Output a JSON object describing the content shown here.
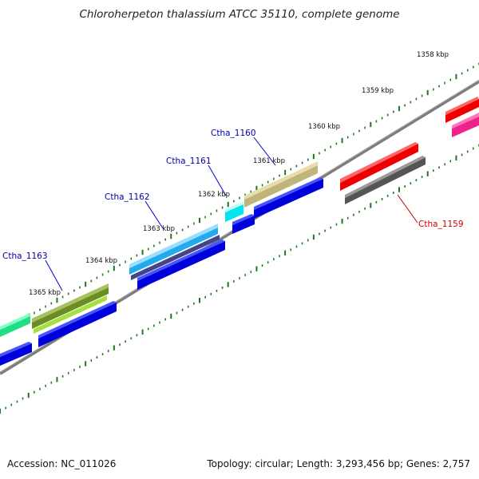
{
  "title": "Chloroherpeton thalassium ATCC 35110, complete genome",
  "footer": {
    "accession": "Accession: NC_011026",
    "summary": "Topology: circular; Length: 3,293,456 bp; Genes: 2,757"
  },
  "ruler": [
    "1358 kbp",
    "1359 kbp",
    "1360 kbp",
    "1361 kbp",
    "1362 kbp",
    "1363 kbp",
    "1364 kbp",
    "1365 kbp"
  ],
  "gene_labels": [
    {
      "name": "Ctha_1159",
      "color": "#cc0000"
    },
    {
      "name": "Ctha_1160",
      "color": "#0000aa"
    },
    {
      "name": "Ctha_1161",
      "color": "#0000aa"
    },
    {
      "name": "Ctha_1162",
      "color": "#0000aa"
    },
    {
      "name": "Ctha_1163",
      "color": "#0000aa"
    }
  ],
  "colors": {
    "tick": "#1a7a1a",
    "backbone": "#808080",
    "cds": "#0000e6",
    "outer_label": "#0000aa",
    "inner_label": "#cc0000"
  }
}
